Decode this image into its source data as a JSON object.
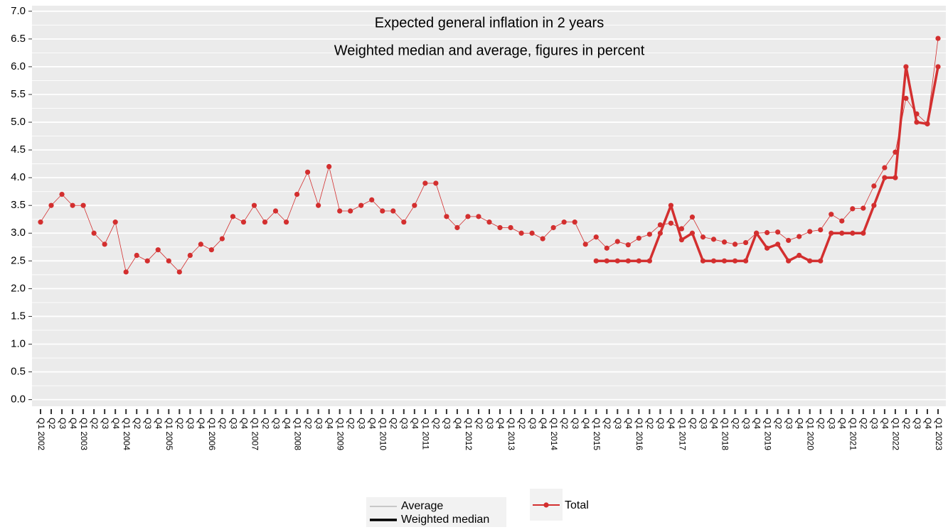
{
  "chart_data": {
    "type": "line",
    "title": "Expected general inflation in 2 years",
    "subtitle": "Weighted median and average, figures in percent",
    "categories": [
      "Q1 2002",
      "Q2",
      "Q3",
      "Q4",
      "Q1 2003",
      "Q2",
      "Q3",
      "Q4",
      "Q1 2004",
      "Q2",
      "Q3",
      "Q4",
      "Q1 2005",
      "Q2",
      "Q3",
      "Q4",
      "Q1 2006",
      "Q2",
      "Q3",
      "Q4",
      "Q1 2007",
      "Q2",
      "Q3",
      "Q4",
      "Q1 2008",
      "Q2",
      "Q3",
      "Q4",
      "Q1 2009",
      "Q2",
      "Q3",
      "Q4",
      "Q1 2010",
      "Q2",
      "Q3",
      "Q4",
      "Q1 2011",
      "Q2",
      "Q3",
      "Q4",
      "Q1 2012",
      "Q2",
      "Q3",
      "Q4",
      "Q1 2013",
      "Q2",
      "Q3",
      "Q4",
      "Q1 2014",
      "Q2",
      "Q3",
      "Q4",
      "Q1 2015",
      "Q2",
      "Q3",
      "Q4",
      "Q1 2016",
      "Q2",
      "Q3",
      "Q4",
      "Q1 2017",
      "Q2",
      "Q3",
      "Q4",
      "Q1 2018",
      "Q2",
      "Q3",
      "Q4",
      "Q1 2019",
      "Q2",
      "Q3",
      "Q4",
      "Q1 2020",
      "Q2",
      "Q3",
      "Q4",
      "Q1 2021",
      "Q2",
      "Q3",
      "Q4",
      "Q1 2022",
      "Q2",
      "Q3",
      "Q4",
      "Q1 2023"
    ],
    "series": [
      {
        "name": "Average",
        "color": "#d32f2f",
        "legend_color": "#808080",
        "line_width": 0.8,
        "values": [
          3.2,
          3.5,
          3.7,
          3.5,
          3.5,
          3.0,
          2.8,
          3.2,
          2.3,
          2.6,
          2.5,
          2.7,
          2.5,
          2.3,
          2.6,
          2.8,
          2.7,
          2.9,
          3.3,
          3.2,
          3.5,
          3.2,
          3.4,
          3.2,
          3.7,
          4.1,
          3.5,
          4.2,
          3.4,
          3.4,
          3.5,
          3.6,
          3.4,
          3.4,
          3.2,
          3.5,
          3.9,
          3.9,
          3.3,
          3.1,
          3.3,
          3.3,
          3.2,
          3.1,
          3.1,
          3.0,
          3.0,
          2.9,
          3.1,
          3.2,
          3.2,
          2.8,
          2.93,
          2.73,
          2.85,
          2.79,
          2.91,
          2.98,
          3.15,
          3.18,
          3.08,
          3.29,
          2.93,
          2.89,
          2.84,
          2.8,
          2.83,
          3.0,
          3.01,
          3.02,
          2.87,
          2.94,
          3.03,
          3.06,
          3.34,
          3.22,
          3.44,
          3.45,
          3.85,
          4.18,
          4.46,
          5.43,
          5.15,
          4.97,
          6.51
        ]
      },
      {
        "name": "Weighted median",
        "color": "#d32f2f",
        "legend_color": "#000000",
        "line_width": 3.5,
        "values": [
          null,
          null,
          null,
          null,
          null,
          null,
          null,
          null,
          null,
          null,
          null,
          null,
          null,
          null,
          null,
          null,
          null,
          null,
          null,
          null,
          null,
          null,
          null,
          null,
          null,
          null,
          null,
          null,
          null,
          null,
          null,
          null,
          null,
          null,
          null,
          null,
          null,
          null,
          null,
          null,
          null,
          null,
          null,
          null,
          null,
          null,
          null,
          null,
          null,
          null,
          null,
          null,
          2.5,
          2.5,
          2.5,
          2.5,
          2.5,
          2.5,
          3.0,
          3.5,
          2.88,
          3.0,
          2.5,
          2.5,
          2.5,
          2.5,
          2.5,
          3.0,
          2.73,
          2.8,
          2.5,
          2.6,
          2.5,
          2.5,
          3.0,
          3.0,
          3.0,
          3.0,
          3.5,
          4.0,
          4.0,
          6.0,
          5.0,
          4.97,
          6.0
        ]
      }
    ],
    "color_legend": {
      "name": "Total",
      "color": "#d32f2f"
    },
    "ylim": [
      -0.12,
      7.1
    ],
    "yticks": [
      {
        "value": 0,
        "label": "0.0"
      },
      0.5,
      {
        "value": 1,
        "label": "1.0"
      },
      1.5,
      {
        "value": 2,
        "label": "2.0"
      },
      2.5,
      {
        "value": 3,
        "label": "3.0"
      },
      3.5,
      {
        "value": 4,
        "label": "4.0"
      },
      4.5,
      {
        "value": 5,
        "label": "5.0"
      },
      5.5,
      {
        "value": 6,
        "label": "6.0"
      },
      6.5,
      {
        "value": 7,
        "label": "7.0"
      }
    ],
    "grid": true
  }
}
